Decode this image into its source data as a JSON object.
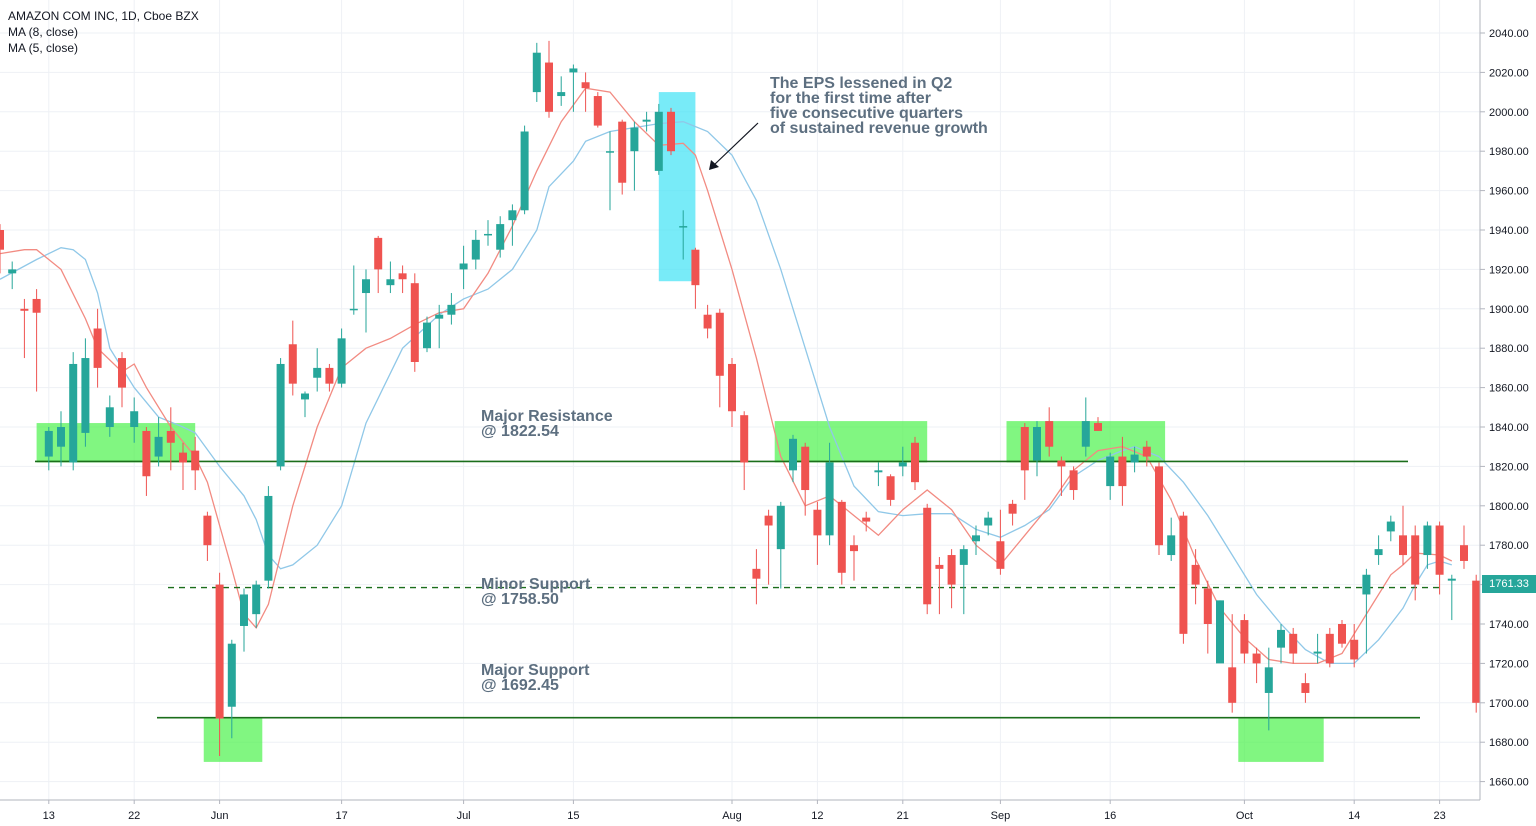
{
  "legend": {
    "symbol": "AMAZON COM INC, 1D, Cboe BZX",
    "ma8": "MA (8, close)",
    "ma5": "MA (5, close)"
  },
  "annotations": {
    "eps_note": [
      "The EPS lessened in Q2",
      "for the first time after",
      "five consecutive quarters",
      "of sustained revenue growth"
    ],
    "major_resistance": [
      "Major Resistance",
      "@ 1822.54"
    ],
    "minor_support": [
      "Minor Support",
      "@ 1758.50"
    ],
    "major_support": [
      "Major Support",
      "@ 1692.45"
    ]
  },
  "price_tag": "1761.33",
  "colors": {
    "up": "#26a69a",
    "down": "#ef5350",
    "ma8": "#90c8e8",
    "ma5": "#f28b82",
    "level_line": "#1b6e1b",
    "zone_green": "#4cf24c",
    "zone_cyan": "#3fe3f5",
    "grid": "#eef1f5"
  },
  "chart_data": {
    "type": "candlestick",
    "title": "AMAZON COM INC, 1D, Cboe BZX",
    "y_ticks": [
      "2040.00",
      "2020.00",
      "2000.00",
      "1980.00",
      "1960.00",
      "1940.00",
      "1920.00",
      "1900.00",
      "1880.00",
      "1860.00",
      "1840.00",
      "1820.00",
      "1800.00",
      "1780.00",
      "1760.00",
      "1740.00",
      "1720.00",
      "1700.00",
      "1680.00",
      "1660.00"
    ],
    "ylim": [
      1653,
      2048
    ],
    "x_ticks": [
      {
        "label": "13",
        "index": 4
      },
      {
        "label": "22",
        "index": 11
      },
      {
        "label": "Jun",
        "index": 18
      },
      {
        "label": "17",
        "index": 28
      },
      {
        "label": "Jul",
        "index": 38
      },
      {
        "label": "15",
        "index": 47
      },
      {
        "label": "Aug",
        "index": 60
      },
      {
        "label": "12",
        "index": 67
      },
      {
        "label": "21",
        "index": 74
      },
      {
        "label": "Sep",
        "index": 82
      },
      {
        "label": "16",
        "index": 91
      },
      {
        "label": "Oct",
        "index": 102
      },
      {
        "label": "14",
        "index": 111
      },
      {
        "label": "23",
        "index": 118
      }
    ],
    "levels": [
      {
        "name": "Major Resistance",
        "value": 1822.54,
        "style": "solid"
      },
      {
        "name": "Minor Support",
        "value": 1758.5,
        "style": "dashed"
      },
      {
        "name": "Major Support",
        "value": 1692.45,
        "style": "solid"
      }
    ],
    "candles": [
      [
        1940,
        1930,
        1943,
        1918
      ],
      [
        1918,
        1920,
        1924,
        1910
      ],
      [
        1900,
        1899,
        1905,
        1875
      ],
      [
        1905,
        1898,
        1910,
        1858
      ],
      [
        1825,
        1838,
        1840,
        1818
      ],
      [
        1830,
        1840,
        1848,
        1820
      ],
      [
        1822,
        1872,
        1878,
        1818
      ],
      [
        1837,
        1875,
        1885,
        1830
      ],
      [
        1890,
        1870,
        1900,
        1860
      ],
      [
        1840,
        1850,
        1856,
        1835
      ],
      [
        1875,
        1860,
        1878,
        1850
      ],
      [
        1840,
        1848,
        1855,
        1832
      ],
      [
        1838,
        1815,
        1840,
        1805
      ],
      [
        1825,
        1835,
        1845,
        1820
      ],
      [
        1838,
        1832,
        1850,
        1818
      ],
      [
        1827,
        1822,
        1832,
        1808
      ],
      [
        1828,
        1818,
        1835,
        1808
      ],
      [
        1795,
        1780,
        1797,
        1772
      ],
      [
        1760,
        1692,
        1766,
        1673
      ],
      [
        1698,
        1730,
        1732,
        1682
      ],
      [
        1739,
        1755,
        1758,
        1726
      ],
      [
        1745,
        1760,
        1762,
        1738
      ],
      [
        1762,
        1805,
        1810,
        1758
      ],
      [
        1820,
        1872,
        1875,
        1818
      ],
      [
        1882,
        1862,
        1894,
        1856
      ],
      [
        1854,
        1857,
        1858,
        1845
      ],
      [
        1865,
        1870,
        1880,
        1858
      ],
      [
        1870,
        1862,
        1872,
        1858
      ],
      [
        1862,
        1885,
        1890,
        1860
      ],
      [
        1900,
        1900,
        1922,
        1897
      ],
      [
        1908,
        1915,
        1920,
        1888
      ],
      [
        1936,
        1920,
        1937,
        1908
      ],
      [
        1912,
        1915,
        1924,
        1908
      ],
      [
        1918,
        1915,
        1922,
        1908
      ],
      [
        1913,
        1873,
        1918,
        1868
      ],
      [
        1880,
        1893,
        1896,
        1878
      ],
      [
        1895,
        1897,
        1902,
        1880
      ],
      [
        1897,
        1902,
        1908,
        1892
      ],
      [
        1920,
        1923,
        1932,
        1910
      ],
      [
        1925,
        1935,
        1940,
        1920
      ],
      [
        1938,
        1938,
        1945,
        1932
      ],
      [
        1930,
        1943,
        1947,
        1926
      ],
      [
        1945,
        1950,
        1953,
        1932
      ],
      [
        1950,
        1990,
        1993,
        1948
      ],
      [
        2010,
        2030,
        2035,
        2005
      ],
      [
        2025,
        2000,
        2036,
        1997
      ],
      [
        2008,
        2010,
        2018,
        2003
      ],
      [
        2020,
        2022,
        2024,
        2000
      ],
      [
        2015,
        2012,
        2020,
        2000
      ],
      [
        2008,
        1993,
        2010,
        1992
      ],
      [
        1980,
        1980,
        1990,
        1950
      ],
      [
        1995,
        1964,
        1996,
        1958
      ],
      [
        1980,
        1992,
        1995,
        1960
      ],
      [
        1995,
        1996,
        2000,
        1990
      ],
      [
        1970,
        2000,
        2004,
        1968
      ],
      [
        2000,
        1980,
        2002,
        1978
      ],
      [
        1942,
        1942,
        1950,
        1925
      ],
      [
        1930,
        1912,
        1931,
        1900
      ],
      [
        1897,
        1890,
        1902,
        1885
      ],
      [
        1898,
        1866,
        1900,
        1850
      ],
      [
        1872,
        1848,
        1875,
        1840
      ],
      [
        1846,
        1822,
        1848,
        1808
      ],
      [
        1768,
        1763,
        1778,
        1750
      ],
      [
        1795,
        1790,
        1798,
        1760
      ],
      [
        1778,
        1800,
        1802,
        1758
      ],
      [
        1818,
        1834,
        1836,
        1812
      ],
      [
        1830,
        1808,
        1832,
        1795
      ],
      [
        1798,
        1785,
        1802,
        1770
      ],
      [
        1785,
        1822,
        1832,
        1780
      ],
      [
        1802,
        1766,
        1803,
        1760
      ],
      [
        1780,
        1777,
        1785,
        1762
      ],
      [
        1794,
        1792,
        1797,
        1787
      ],
      [
        1817,
        1818,
        1822,
        1810
      ],
      [
        1815,
        1803,
        1816,
        1800
      ],
      [
        1820,
        1822,
        1830,
        1815
      ],
      [
        1832,
        1812,
        1835,
        1808
      ],
      [
        1799,
        1750,
        1801,
        1745
      ],
      [
        1770,
        1768,
        1774,
        1745
      ],
      [
        1775,
        1760,
        1778,
        1748
      ],
      [
        1770,
        1778,
        1780,
        1745
      ],
      [
        1782,
        1785,
        1790,
        1775
      ],
      [
        1790,
        1794,
        1797,
        1785
      ],
      [
        1782,
        1768,
        1798,
        1765
      ],
      [
        1801,
        1796,
        1803,
        1790
      ],
      [
        1840,
        1818,
        1842,
        1803
      ],
      [
        1823,
        1840,
        1843,
        1815
      ],
      [
        1843,
        1830,
        1850,
        1825
      ],
      [
        1823,
        1820,
        1825,
        1805
      ],
      [
        1818,
        1808,
        1820,
        1803
      ],
      [
        1830,
        1843,
        1855,
        1825
      ],
      [
        1842,
        1838,
        1845,
        1838
      ],
      [
        1810,
        1825,
        1827,
        1803
      ],
      [
        1825,
        1810,
        1835,
        1800
      ],
      [
        1822,
        1826,
        1830,
        1817
      ],
      [
        1830,
        1825,
        1833,
        1820
      ],
      [
        1820,
        1780,
        1822,
        1775
      ],
      [
        1775,
        1785,
        1794,
        1772
      ],
      [
        1795,
        1735,
        1797,
        1730
      ],
      [
        1770,
        1760,
        1778,
        1750
      ],
      [
        1758,
        1740,
        1762,
        1725
      ],
      [
        1720,
        1752,
        1752,
        1722
      ],
      [
        1718,
        1700,
        1745,
        1695
      ],
      [
        1742,
        1725,
        1745,
        1720
      ],
      [
        1725,
        1720,
        1728,
        1710
      ],
      [
        1705,
        1718,
        1728,
        1686
      ],
      [
        1728,
        1737,
        1740,
        1720
      ],
      [
        1735,
        1725,
        1738,
        1720
      ],
      [
        1710,
        1705,
        1715,
        1700
      ],
      [
        1725,
        1726,
        1735,
        1720
      ],
      [
        1735,
        1720,
        1738,
        1718
      ],
      [
        1740,
        1730,
        1742,
        1728
      ],
      [
        1732,
        1722,
        1740,
        1718
      ],
      [
        1755,
        1765,
        1768,
        1725
      ],
      [
        1775,
        1778,
        1785,
        1770
      ],
      [
        1787,
        1792,
        1795,
        1782
      ],
      [
        1785,
        1775,
        1800,
        1770
      ],
      [
        1785,
        1760,
        1790,
        1752
      ],
      [
        1775,
        1790,
        1792,
        1768
      ],
      [
        1790,
        1765,
        1792,
        1755
      ],
      [
        1762,
        1763,
        1765,
        1742
      ],
      [
        1780,
        1772,
        1790,
        1768
      ],
      [
        1762,
        1700,
        1765,
        1695
      ]
    ],
    "ma8_curve": [
      [
        0,
        1915
      ],
      [
        3,
        1925
      ],
      [
        5,
        1931
      ],
      [
        6,
        1930
      ],
      [
        7,
        1925
      ],
      [
        8,
        1908
      ],
      [
        9,
        1880
      ],
      [
        11,
        1860
      ],
      [
        13,
        1845
      ],
      [
        15,
        1840
      ],
      [
        16,
        1837
      ],
      [
        18,
        1820
      ],
      [
        20,
        1805
      ],
      [
        21,
        1793
      ],
      [
        22,
        1775
      ],
      [
        23,
        1768
      ],
      [
        24,
        1770
      ],
      [
        26,
        1780
      ],
      [
        28,
        1800
      ],
      [
        30,
        1842
      ],
      [
        33,
        1880
      ],
      [
        36,
        1897
      ],
      [
        38,
        1905
      ],
      [
        40,
        1910
      ],
      [
        42,
        1920
      ],
      [
        44,
        1940
      ],
      [
        45,
        1962
      ],
      [
        47,
        1975
      ],
      [
        48,
        1985
      ],
      [
        50,
        1990
      ],
      [
        52,
        1992
      ],
      [
        54,
        1994
      ],
      [
        56,
        1995
      ],
      [
        58,
        1990
      ],
      [
        60,
        1978
      ],
      [
        62,
        1955
      ],
      [
        64,
        1920
      ],
      [
        66,
        1880
      ],
      [
        68,
        1840
      ],
      [
        70,
        1810
      ],
      [
        72,
        1797
      ],
      [
        74,
        1795
      ],
      [
        76,
        1796
      ],
      [
        78,
        1796
      ],
      [
        80,
        1788
      ],
      [
        82,
        1784
      ],
      [
        84,
        1790
      ],
      [
        86,
        1798
      ],
      [
        88,
        1815
      ],
      [
        90,
        1823
      ],
      [
        92,
        1828
      ],
      [
        93,
        1830
      ],
      [
        95,
        1825
      ],
      [
        97,
        1812
      ],
      [
        99,
        1795
      ],
      [
        101,
        1775
      ],
      [
        103,
        1755
      ],
      [
        105,
        1740
      ],
      [
        107,
        1727
      ],
      [
        109,
        1720
      ],
      [
        111,
        1720
      ],
      [
        113,
        1732
      ],
      [
        115,
        1748
      ],
      [
        116,
        1760
      ],
      [
        117,
        1770
      ],
      [
        118,
        1772
      ],
      [
        119,
        1770
      ]
    ],
    "ma5_curve": [
      [
        0,
        1928
      ],
      [
        2,
        1930
      ],
      [
        3,
        1930
      ],
      [
        5,
        1920
      ],
      [
        7,
        1895
      ],
      [
        8,
        1880
      ],
      [
        10,
        1868
      ],
      [
        11,
        1872
      ],
      [
        12,
        1860
      ],
      [
        14,
        1840
      ],
      [
        16,
        1825
      ],
      [
        17,
        1812
      ],
      [
        18,
        1790
      ],
      [
        19,
        1768
      ],
      [
        20,
        1745
      ],
      [
        21,
        1738
      ],
      [
        22,
        1750
      ],
      [
        23,
        1775
      ],
      [
        24,
        1800
      ],
      [
        26,
        1840
      ],
      [
        28,
        1870
      ],
      [
        30,
        1880
      ],
      [
        32,
        1885
      ],
      [
        34,
        1892
      ],
      [
        36,
        1898
      ],
      [
        38,
        1900
      ],
      [
        40,
        1918
      ],
      [
        42,
        1942
      ],
      [
        44,
        1970
      ],
      [
        46,
        1995
      ],
      [
        48,
        2012
      ],
      [
        50,
        2010
      ],
      [
        52,
        1995
      ],
      [
        54,
        1983
      ],
      [
        56,
        1984
      ],
      [
        57,
        1978
      ],
      [
        58,
        1960
      ],
      [
        60,
        1920
      ],
      [
        62,
        1875
      ],
      [
        64,
        1825
      ],
      [
        66,
        1800
      ],
      [
        68,
        1805
      ],
      [
        70,
        1795
      ],
      [
        72,
        1785
      ],
      [
        74,
        1798
      ],
      [
        76,
        1808
      ],
      [
        78,
        1798
      ],
      [
        80,
        1780
      ],
      [
        82,
        1770
      ],
      [
        84,
        1785
      ],
      [
        86,
        1800
      ],
      [
        88,
        1818
      ],
      [
        90,
        1828
      ],
      [
        92,
        1830
      ],
      [
        94,
        1825
      ],
      [
        96,
        1803
      ],
      [
        98,
        1773
      ],
      [
        100,
        1748
      ],
      [
        102,
        1733
      ],
      [
        104,
        1722
      ],
      [
        106,
        1720
      ],
      [
        108,
        1720
      ],
      [
        110,
        1725
      ],
      [
        112,
        1745
      ],
      [
        114,
        1765
      ],
      [
        115,
        1770
      ],
      [
        116,
        1776
      ],
      [
        118,
        1775
      ],
      [
        119,
        1772
      ]
    ],
    "zones": [
      {
        "color": "green",
        "from": 3,
        "to": 16,
        "top": 1842,
        "bottom": 1822
      },
      {
        "color": "green",
        "from": 16.7,
        "to": 21.5,
        "top": 1692,
        "bottom": 1670
      },
      {
        "color": "cyan",
        "from": 54,
        "to": 57,
        "top": 2010,
        "bottom": 1914
      },
      {
        "color": "green",
        "from": 63.5,
        "to": 76,
        "top": 1843,
        "bottom": 1822
      },
      {
        "color": "green",
        "from": 82.5,
        "to": 95.5,
        "top": 1843,
        "bottom": 1822
      },
      {
        "color": "green",
        "from": 101.5,
        "to": 108.5,
        "top": 1692,
        "bottom": 1670
      }
    ]
  }
}
